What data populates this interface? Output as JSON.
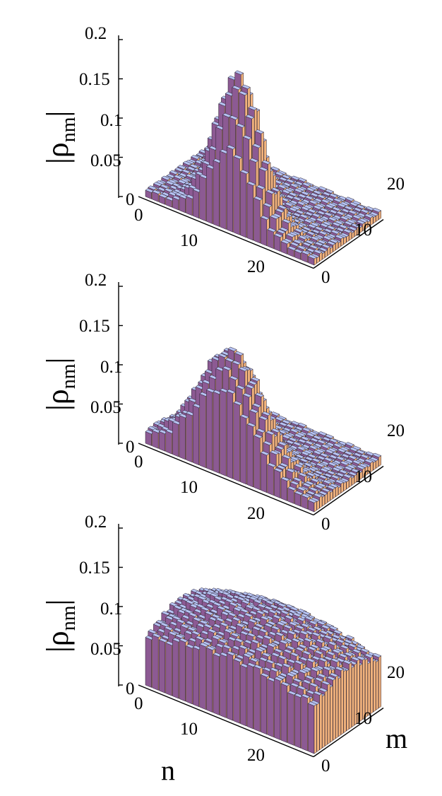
{
  "chart_data": [
    {
      "type": "bar3d",
      "n_range": [
        0,
        25
      ],
      "m_range": [
        0,
        25
      ],
      "zlim": [
        0,
        0.2
      ],
      "z_ticks": [
        "0",
        "0.05",
        "0.1",
        "0.15",
        "0.2"
      ],
      "n_ticks": [
        "0",
        "10",
        "20"
      ],
      "m_ticks": [
        "0",
        "10",
        "20"
      ],
      "zlabel_main": "|ρ",
      "zlabel_sub": "nm",
      "zlabel_close": "|",
      "surface": {
        "center_n": 12,
        "center_m": 3,
        "peak": 0.19,
        "width_n": 3.2,
        "width_m": 2.6,
        "background": 0.008
      },
      "colors": {
        "top": "#b6c3f2",
        "side_a": "#8c5a93",
        "side_b": "#f2b37d",
        "edge": "#2b2233"
      }
    },
    {
      "type": "bar3d",
      "n_range": [
        0,
        25
      ],
      "m_range": [
        0,
        25
      ],
      "zlim": [
        0,
        0.2
      ],
      "z_ticks": [
        "0",
        "0.05",
        "0.1",
        "0.15",
        "0.2"
      ],
      "n_ticks": [
        "0",
        "10",
        "20"
      ],
      "m_ticks": [
        "0",
        "10",
        "20"
      ],
      "zlabel_main": "|ρ",
      "zlabel_sub": "nm",
      "zlabel_close": "|",
      "surface": {
        "center_n": 11,
        "center_m": 3,
        "peak": 0.15,
        "width_n": 4.5,
        "width_m": 3.5,
        "background": 0.01
      },
      "colors": {
        "top": "#b6c3f2",
        "side_a": "#8c5a93",
        "side_b": "#f2b37d",
        "edge": "#2b2233"
      }
    },
    {
      "type": "bar3d",
      "n_range": [
        0,
        25
      ],
      "m_range": [
        0,
        25
      ],
      "zlim": [
        0,
        0.2
      ],
      "z_ticks": [
        "0",
        "0.05",
        "0.1",
        "0.15",
        "0.2"
      ],
      "n_ticks": [
        "0",
        "10",
        "20"
      ],
      "m_ticks": [
        "0",
        "10",
        "20"
      ],
      "zlabel_main": "|ρ",
      "zlabel_sub": "nm",
      "zlabel_close": "|",
      "xlabel": "n",
      "ylabel": "m",
      "surface": {
        "center_n": 12,
        "center_m": 12,
        "peak": 0.105,
        "width_n": 14,
        "width_m": 14,
        "background": 0.02
      },
      "colors": {
        "top": "#b6c3f2",
        "side_a": "#8c5a93",
        "side_b": "#f2b37d",
        "edge": "#2b2233"
      }
    }
  ]
}
